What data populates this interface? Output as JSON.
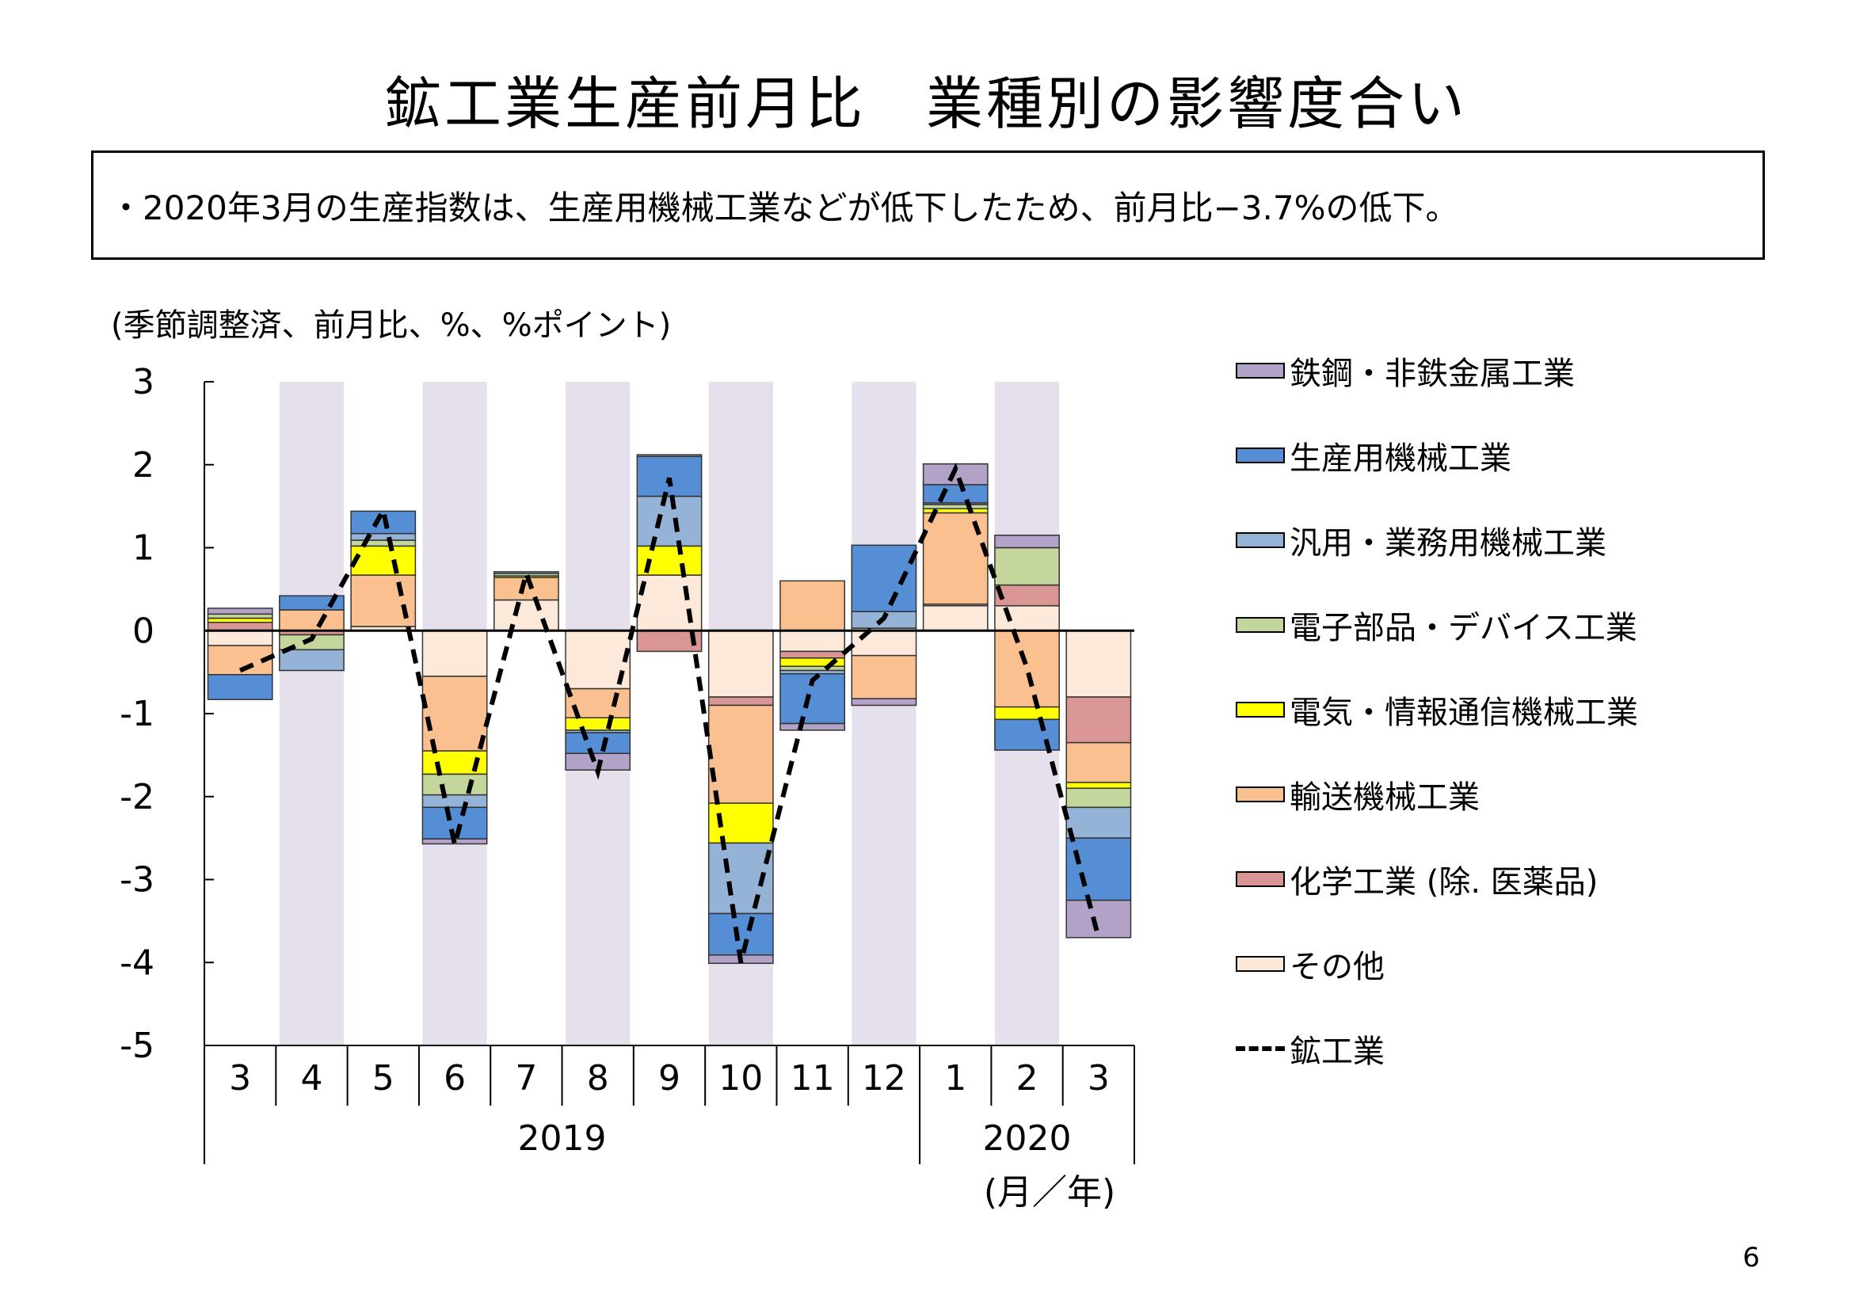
{
  "title": "鉱工業生産前月比　業種別の影響度合い",
  "summary": "・2020年3月の生産指数は、生産用機械工業などが低下したため、前月比−3.7%の低下。",
  "unit_note": "(季節調整済、前月比、%、%ポイント)",
  "page_number": "6",
  "chart_data": {
    "type": "bar",
    "stacked": true,
    "categories": [
      "3",
      "4",
      "5",
      "6",
      "7",
      "8",
      "9",
      "10",
      "11",
      "12",
      "1",
      "2",
      "3"
    ],
    "year_labels": [
      {
        "label": "2019",
        "from": 0,
        "to": 9
      },
      {
        "label": "2020",
        "from": 10,
        "to": 12
      }
    ],
    "axis_unit": "(月／年)",
    "ylim": [
      -5,
      3
    ],
    "yticks": [
      "3",
      "2",
      "1",
      "0",
      "-1",
      "-2",
      "-3",
      "-4",
      "-5"
    ],
    "yticks_values": [
      3,
      2,
      1,
      0,
      -1,
      -2,
      -3,
      -4,
      -5
    ],
    "shaded_categories": [
      1,
      3,
      5,
      7,
      9,
      11
    ],
    "shade_color": "#e6e0ec",
    "series": [
      {
        "name": "その他",
        "color": "#fde9d9",
        "values": [
          -0.18,
          0.0,
          0.05,
          -0.55,
          0.37,
          -0.7,
          0.67,
          -0.8,
          -0.25,
          -0.3,
          0.3,
          0.3,
          -0.8
        ]
      },
      {
        "name": "化学工業 (除. 医薬品)",
        "color": "#da9694",
        "values": [
          0.1,
          -0.05,
          0.0,
          0.0,
          0.0,
          0.0,
          -0.25,
          -0.1,
          -0.08,
          0.0,
          0.02,
          0.25,
          -0.55
        ]
      },
      {
        "name": "輸送機械工業",
        "color": "#fac090",
        "values": [
          -0.35,
          0.25,
          0.62,
          -0.9,
          0.27,
          -0.35,
          0.0,
          -1.18,
          0.6,
          -0.52,
          1.1,
          -0.92,
          -0.48
        ]
      },
      {
        "name": "電気・情報通信機械工業",
        "color": "#ffff00",
        "values": [
          0.05,
          0.0,
          0.35,
          -0.28,
          0.02,
          -0.15,
          0.35,
          -0.48,
          -0.1,
          0.0,
          0.05,
          -0.15,
          -0.07
        ]
      },
      {
        "name": "電子部品・デバイス工業",
        "color": "#c3d69b",
        "values": [
          0.05,
          -0.18,
          0.07,
          -0.25,
          0.03,
          0.0,
          0.0,
          0.0,
          -0.05,
          0.03,
          0.05,
          0.45,
          -0.23
        ]
      },
      {
        "name": "汎用・業務用機械工業",
        "color": "#95b3d7",
        "values": [
          0.0,
          -0.25,
          0.08,
          -0.15,
          0.02,
          -0.03,
          0.6,
          -0.85,
          -0.04,
          0.2,
          0.02,
          0.0,
          -0.37
        ]
      },
      {
        "name": "生産用機械工業",
        "color": "#558ed5",
        "values": [
          -0.3,
          0.17,
          0.27,
          -0.38,
          0.0,
          -0.25,
          0.48,
          -0.5,
          -0.6,
          0.8,
          0.22,
          -0.37,
          -0.75
        ]
      },
      {
        "name": "鉄鋼・非鉄金属工業",
        "color": "#b3a2c7",
        "values": [
          0.07,
          0.0,
          0.0,
          -0.06,
          0.0,
          -0.2,
          0.02,
          -0.1,
          -0.08,
          -0.08,
          0.25,
          0.15,
          -0.45
        ]
      }
    ],
    "line": {
      "name": "鉱工業",
      "style": "dashed",
      "color": "#000000",
      "values": [
        -0.48,
        -0.1,
        1.45,
        -2.58,
        0.69,
        -1.7,
        1.84,
        -4.0,
        -0.6,
        0.15,
        1.95,
        -0.45,
        -3.7
      ]
    },
    "legend_order": [
      "鉄鋼・非鉄金属工業",
      "生産用機械工業",
      "汎用・業務用機械工業",
      "電子部品・デバイス工業",
      "電気・情報通信機械工業",
      "輸送機械工業",
      "化学工業 (除. 医薬品)",
      "その他",
      "鉱工業"
    ],
    "legend_position": "right"
  }
}
